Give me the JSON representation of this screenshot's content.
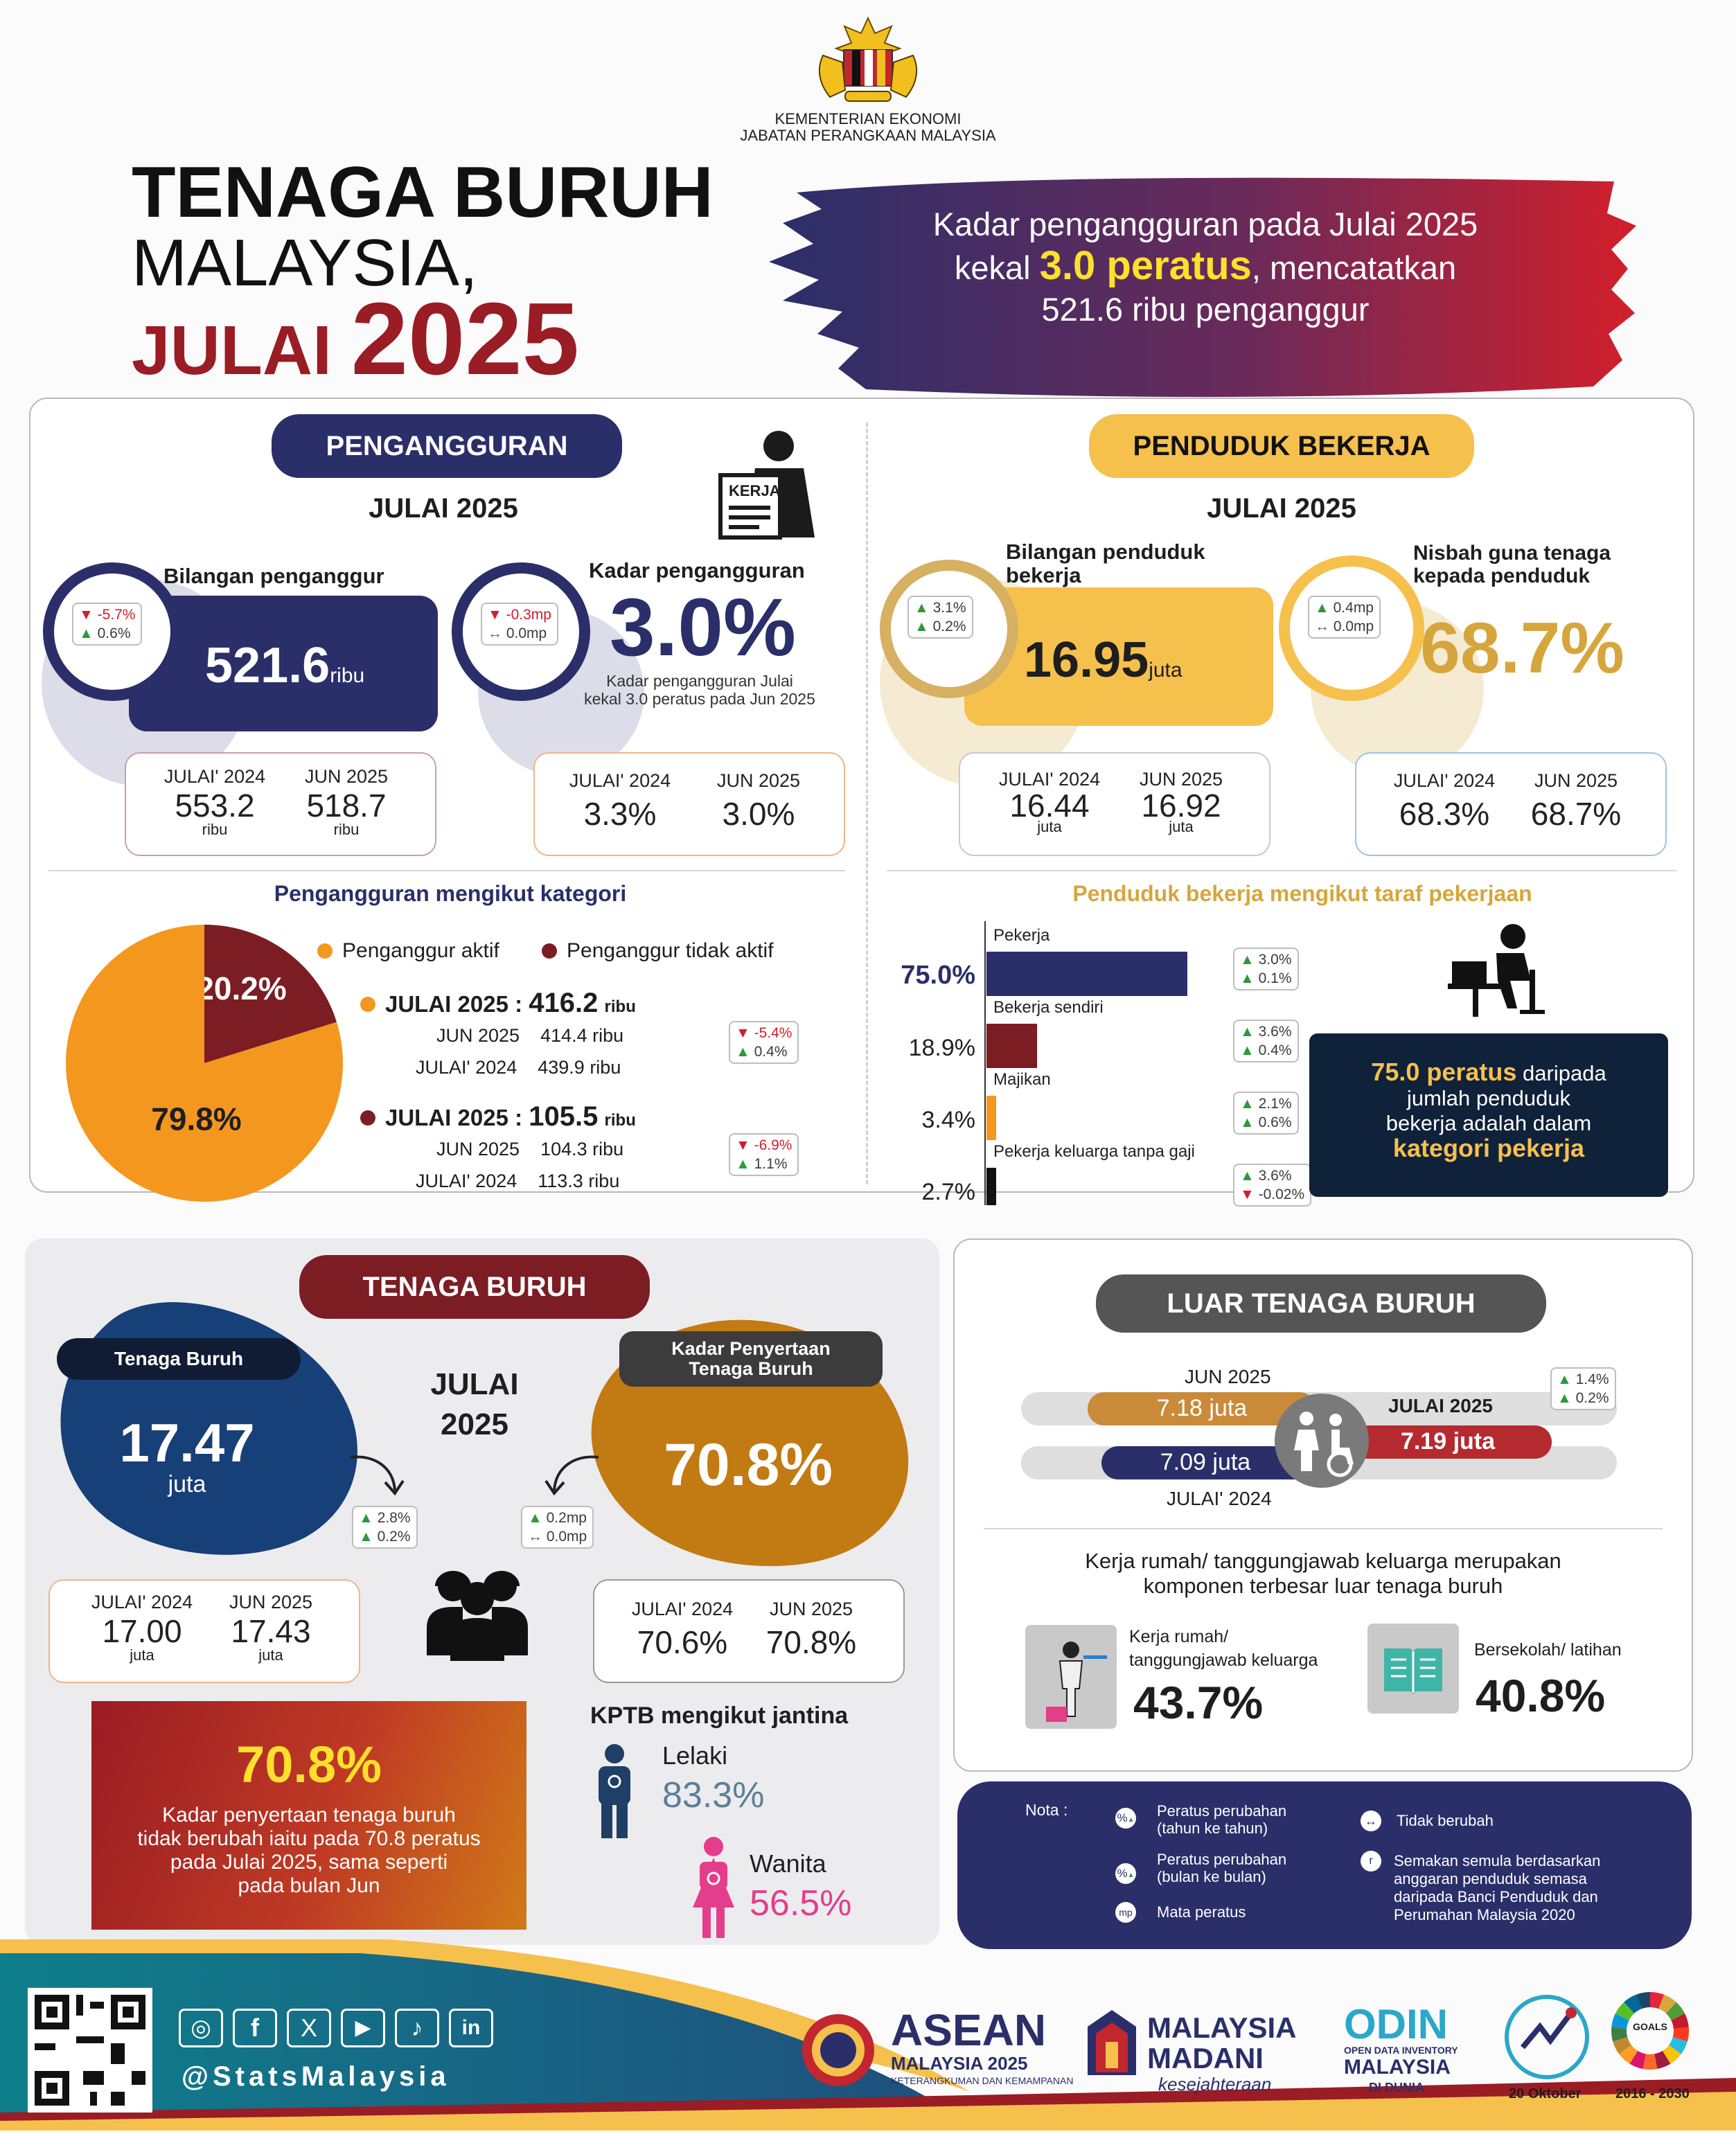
{
  "header": {
    "ministry_line1": "KEMENTERIAN EKONOMI",
    "ministry_line2": "JABATAN PERANGKAAN MALAYSIA",
    "title1": "TENAGA BURUH",
    "title2": "MALAYSIA,",
    "title3a": "JULAI",
    "title3b": "2025",
    "headline_line1": "Kadar pengangguran pada Julai 2025",
    "headline_line2a": "kekal",
    "headline_highlight": "3.0 peratus",
    "headline_line2b": ", mencatatkan",
    "headline_line3": "521.6 ribu penganggur"
  },
  "unemployment": {
    "title": "PENGANGGURAN",
    "month": "JULAI 2025",
    "icon_text": "KERJA",
    "count_label": "Bilangan penganggur",
    "count_value": "521.6",
    "count_unit": "ribu",
    "count_yoy": "-5.7%",
    "count_mom": "0.6%",
    "rate_label": "Kadar pengangguran",
    "rate_value": "3.0%",
    "rate_yoy": "-0.3mp",
    "rate_mom": "0.0mp",
    "rate_note_line1": "Kadar pengangguran Julai",
    "rate_note_line2": "kekal 3.0 peratus pada Jun 2025",
    "count_compare": [
      {
        "label": "JULAI' 2024",
        "value": "553.2",
        "unit": "ribu"
      },
      {
        "label": "JUN 2025",
        "value": "518.7",
        "unit": "ribu"
      }
    ],
    "rate_compare": [
      {
        "label": "JULAI' 2024",
        "value": "3.3%"
      },
      {
        "label": "JUN 2025",
        "value": "3.0%"
      }
    ],
    "category_title": "Pengangguran mengikut kategori",
    "legend_active": "Penganggur aktif",
    "legend_inactive": "Penganggur tidak aktif",
    "active": {
      "label": "JULAI 2025",
      "value": "416.2",
      "unit": "ribu",
      "jun_label": "JUN 2025",
      "jun_value": "414.4 ribu",
      "jul24_label": "JULAI' 2024",
      "jul24_value": "439.9 ribu",
      "yoy": "-5.4%",
      "mom": "0.4%"
    },
    "inactive": {
      "label": "JULAI 2025",
      "value": "105.5",
      "unit": "ribu",
      "jun_label": "JUN 2025",
      "jun_value": "104.3 ribu",
      "jul24_label": "JULAI' 2024",
      "jul24_value": "113.3 ribu",
      "yoy": "-6.9%",
      "mom": "1.1%"
    }
  },
  "employed": {
    "title": "PENDUDUK BEKERJA",
    "month": "JULAI 2025",
    "count_label_line1": "Bilangan penduduk",
    "count_label_line2": "bekerja",
    "count_value": "16.95",
    "count_unit": "juta",
    "count_yoy": "3.1%",
    "count_mom": "0.2%",
    "ratio_label_line1": "Nisbah guna tenaga",
    "ratio_label_line2": "kepada penduduk",
    "ratio_value": "68.7%",
    "ratio_yoy": "0.4mp",
    "ratio_mom": "0.0mp",
    "count_compare": [
      {
        "label": "JULAI' 2024",
        "value": "16.44",
        "unit": "juta"
      },
      {
        "label": "JUN 2025",
        "value": "16.92",
        "unit": "juta"
      }
    ],
    "ratio_compare": [
      {
        "label": "JULAI' 2024",
        "value": "68.3%"
      },
      {
        "label": "JUN 2025",
        "value": "68.7%"
      }
    ],
    "status_title": "Penduduk bekerja mengikut taraf pekerjaan",
    "status_changes": [
      {
        "yoy": "3.0%",
        "mom": "0.1%",
        "mom_dir": "up"
      },
      {
        "yoy": "3.6%",
        "mom": "0.4%",
        "mom_dir": "up"
      },
      {
        "yoy": "2.1%",
        "mom": "0.6%",
        "mom_dir": "up"
      },
      {
        "yoy": "3.6%",
        "mom": "-0.02%",
        "mom_dir": "dn"
      }
    ],
    "callout_highlight": "75.0 peratus",
    "callout_line1": "daripada",
    "callout_line2": "jumlah penduduk",
    "callout_line3": "bekerja adalah dalam",
    "callout_highlight2": "kategori pekerja"
  },
  "labour_force": {
    "title": "TENAGA BURUH",
    "month_line1": "JULAI",
    "month_line2": "2025",
    "lf_label": "Tenaga Buruh",
    "lf_value": "17.47",
    "lf_unit": "juta",
    "lf_yoy": "2.8%",
    "lf_mom": "0.2%",
    "lfpr_label_line1": "Kadar Penyertaan",
    "lfpr_label_line2": "Tenaga Buruh",
    "lfpr_value": "70.8%",
    "lfpr_yoy": "0.2mp",
    "lfpr_mom": "0.0mp",
    "lf_compare": [
      {
        "label": "JULAI' 2024",
        "value": "17.00",
        "unit": "juta"
      },
      {
        "label": "JUN 2025",
        "value": "17.43",
        "unit": "juta"
      }
    ],
    "lfpr_compare": [
      {
        "label": "JULAI' 2024",
        "value": "70.6%"
      },
      {
        "label": "JUN 2025",
        "value": "70.8%"
      }
    ],
    "red_value": "70.8%",
    "red_text_line1": "Kadar penyertaan tenaga buruh",
    "red_text_line2": "tidak berubah iaitu pada 70.8 peratus",
    "red_text_line3": "pada Julai 2025, sama seperti",
    "red_text_line4": "pada bulan Jun",
    "gender_title": "KPTB mengikut jantina",
    "male_label": "Lelaki",
    "male_value": "83.3%",
    "female_label": "Wanita",
    "female_value": "56.5%"
  },
  "outside": {
    "title": "LUAR TENAGA BURUH",
    "jun_label": "JUN 2025",
    "jun_value": "7.18 juta",
    "jul25_label": "JULAI 2025",
    "jul25_value": "7.19 juta",
    "jul24_label": "JULAI' 2024",
    "jul24_value": "7.09 juta",
    "yoy": "1.4%",
    "mom": "0.2%",
    "desc_line1": "Kerja rumah/ tanggungjawab keluarga merupakan",
    "desc_line2": "komponen terbesar luar tenaga buruh",
    "house_label_line1": "Kerja rumah/",
    "house_label_line2": "tanggungjawab keluarga",
    "house_value": "43.7%",
    "school_label": "Bersekolah/ latihan",
    "school_value": "40.8%"
  },
  "note": {
    "title": "Nota :",
    "items": [
      {
        "sym": "%",
        "text_line1": "Peratus perubahan",
        "text_line2": "(tahun ke tahun)"
      },
      {
        "sym": "%",
        "text_line1": "Peratus perubahan",
        "text_line2": "(bulan ke bulan)"
      },
      {
        "sym": "mp",
        "text_line1": "Mata peratus",
        "text_line2": ""
      }
    ],
    "unchanged_text": "Tidak berubah",
    "revision_sym": "r",
    "revision_lines": [
      "Semakan semula berdasarkan",
      "anggaran penduduk semasa",
      "daripada Banci Penduduk dan",
      "Perumahan Malaysia 2020"
    ]
  },
  "footer": {
    "handle": "@StatsMalaysia",
    "asean_title": "ASEAN",
    "asean_sub": "MALAYSIA 2025",
    "asean_tag": "KETERANGKUMAN DAN KEMAMPANAN",
    "madani_line1": "MALAYSIA",
    "madani_line2": "MADANI",
    "madani_tag": "kesejahteraan",
    "odin_line1": "ODIN",
    "odin_line2": "OPEN DATA INVENTORY",
    "odin_line3": "MALAYSIA",
    "odin_line4": "DI DUNIA",
    "stats_date": "20 Oktober",
    "sdg_years": "2016 - 2030",
    "sdg_label": "GOALS"
  },
  "colors": {
    "navy": "#2a2f6a",
    "red": "#9a1c24",
    "gold": "#f6c04d",
    "orange": "#f4971f",
    "darkred": "#7b1d23",
    "olive": "#c98a1a"
  },
  "chart_data": [
    {
      "type": "pie",
      "title": "Pengangguran mengikut kategori",
      "categories": [
        "Penganggur aktif",
        "Penganggur tidak aktif"
      ],
      "values": [
        79.8,
        20.2
      ],
      "labels": [
        "79.8%",
        "20.2%"
      ],
      "colors": [
        "#f4971f",
        "#7b1d23"
      ],
      "legend_position": "top-right"
    },
    {
      "type": "bar",
      "title": "Penduduk bekerja mengikut taraf pekerjaan",
      "categories": [
        "Pekerja",
        "Bekerja sendiri",
        "Majikan",
        "Pekerja keluarga tanpa gaji"
      ],
      "values": [
        75.0,
        18.9,
        3.4,
        2.7
      ],
      "labels": [
        "75.0%",
        "18.9%",
        "3.4%",
        "2.7%"
      ],
      "colors": [
        "#2a2f6a",
        "#7b1d23",
        "#f4971f",
        "#111111"
      ],
      "orientation": "horizontal"
    },
    {
      "type": "bar",
      "title": "LUAR TENAGA BURUH",
      "categories": [
        "JUN 2025",
        "JULAI 2025",
        "JULAI' 2024"
      ],
      "values": [
        7.18,
        7.19,
        7.09
      ],
      "labels": [
        "7.18 juta",
        "7.19 juta",
        "7.09 juta"
      ],
      "colors": [
        "#c98a3a",
        "#b52a2f",
        "#2a2f6a"
      ],
      "orientation": "horizontal"
    }
  ]
}
